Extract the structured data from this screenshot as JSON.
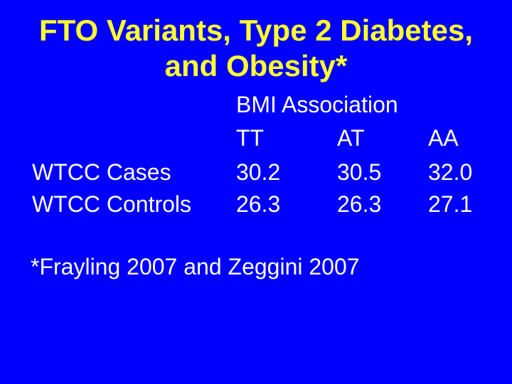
{
  "slide": {
    "background_color": "#0000FF",
    "title_color": "#FFFF33",
    "body_color": "#FFFFFF",
    "title": {
      "line1": "FTO Variants, Type 2 Diabetes,",
      "line2": "and Obesity*"
    },
    "table": {
      "header": "BMI Association",
      "columns": [
        "TT",
        "AT",
        "AA"
      ],
      "rows": [
        {
          "label": "WTCC Cases",
          "values": [
            "30.2",
            "30.5",
            "32.0"
          ]
        },
        {
          "label": "WTCC Controls",
          "values": [
            "26.3",
            "26.3",
            "27.1"
          ]
        }
      ]
    },
    "footnote": "*Frayling 2007 and Zeggini 2007"
  }
}
